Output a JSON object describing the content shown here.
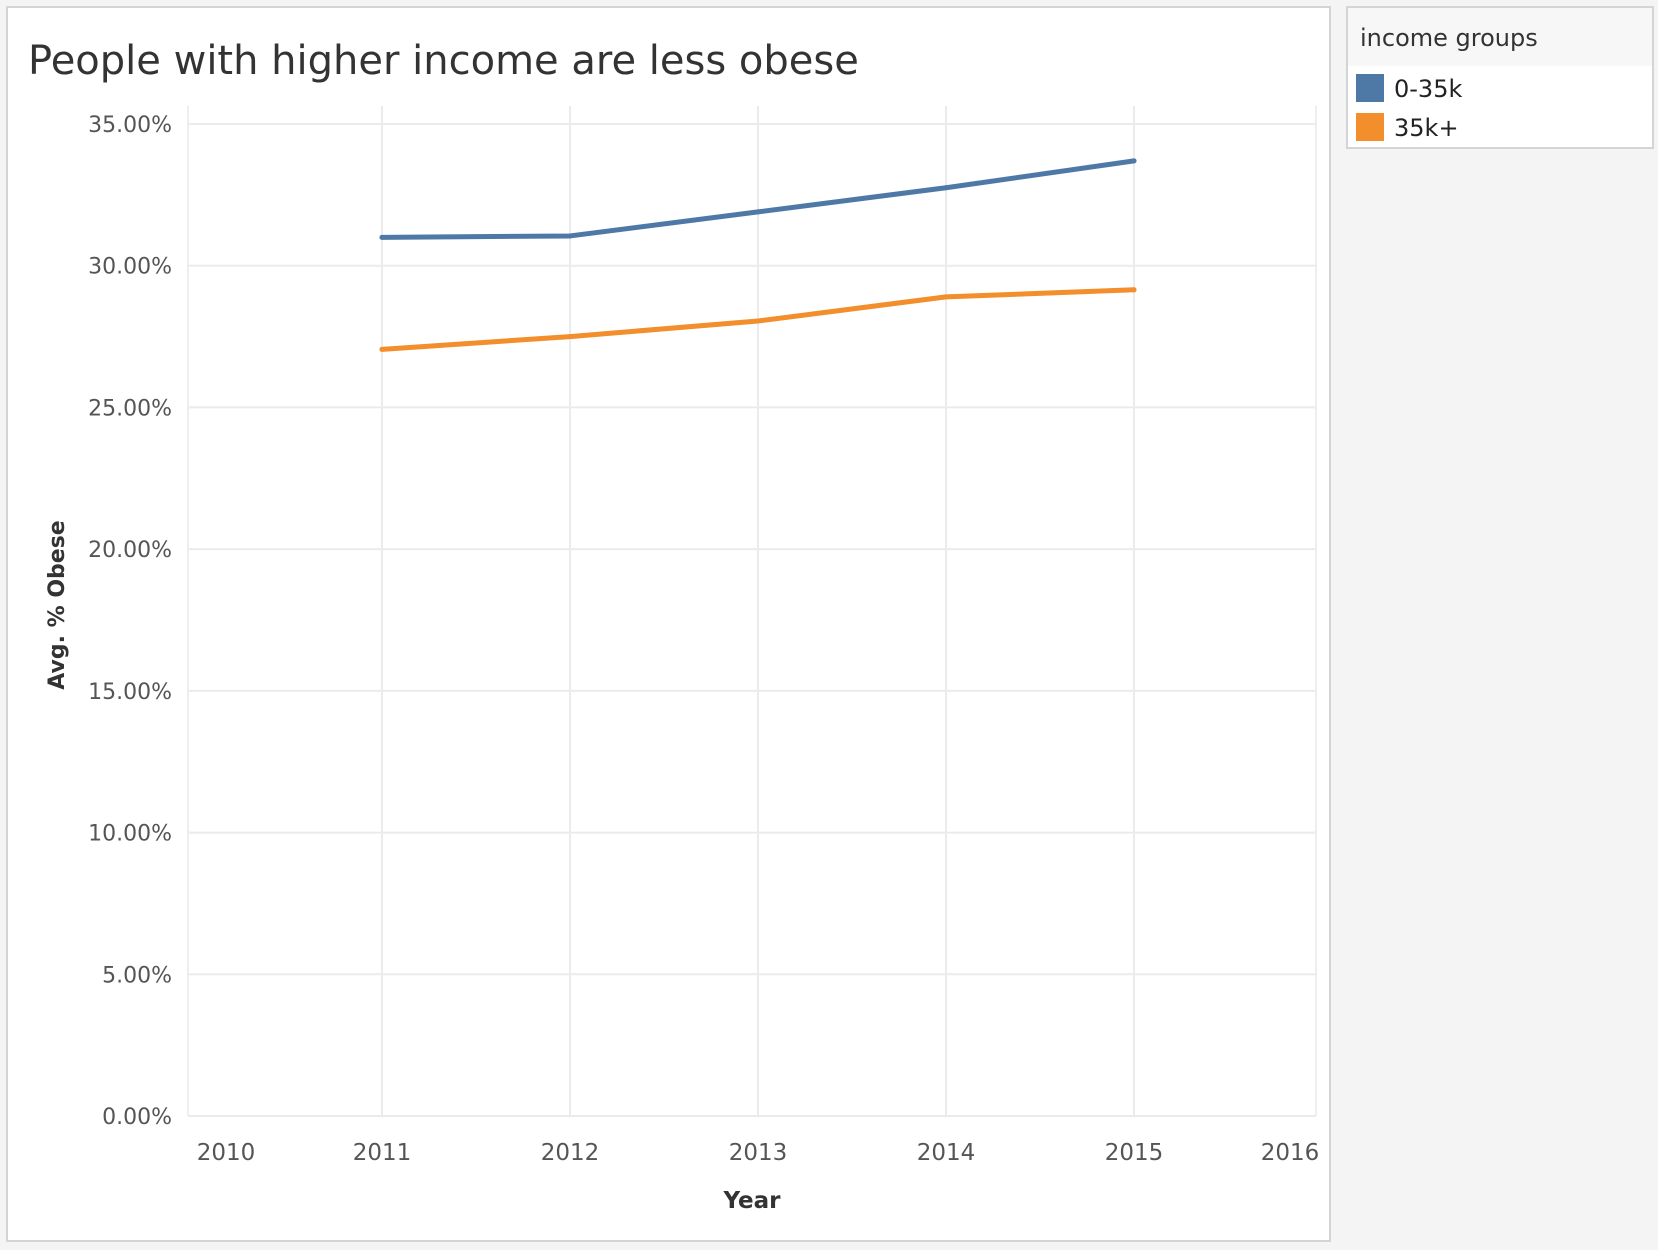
{
  "chart_data": {
    "type": "line",
    "title": "People with higher income are less obese",
    "xlabel": "Year",
    "ylabel": "Avg. % Obese",
    "x_ticks": [
      "2010",
      "2011",
      "2012",
      "2013",
      "2014",
      "2015",
      "2016"
    ],
    "y_ticks": [
      "0.00%",
      "5.00%",
      "10.00%",
      "15.00%",
      "20.00%",
      "25.00%",
      "30.00%",
      "35.00%"
    ],
    "xlim": [
      2010,
      2016
    ],
    "ylim": [
      0,
      35
    ],
    "grid": true,
    "legend": {
      "title": "income groups",
      "placement": "right"
    },
    "x": [
      2011,
      2012,
      2013,
      2014,
      2015
    ],
    "series": [
      {
        "name": "0-35k",
        "color": "#4e79a7",
        "values": [
          31.0,
          31.05,
          31.9,
          32.75,
          33.7
        ]
      },
      {
        "name": "35k+",
        "color": "#f28e2b",
        "values": [
          27.05,
          27.5,
          28.05,
          28.9,
          29.15
        ]
      }
    ]
  }
}
